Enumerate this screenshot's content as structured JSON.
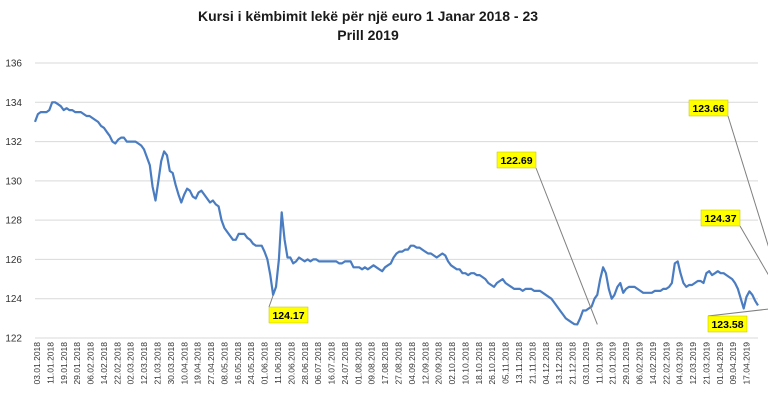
{
  "chart_data": {
    "type": "line",
    "title_line1": "Kursi i këmbimit lekë për një euro 1 Janar 2018 - 23",
    "title_line2": "Prill 2019",
    "ylim": [
      122,
      136
    ],
    "yticks": [
      "122",
      "124",
      "126",
      "128",
      "130",
      "132",
      "134",
      "136"
    ],
    "grid": true,
    "line_color": "#4a7cc2",
    "callout_color": "#ffff00",
    "x_labels": [
      "03.01.2018",
      "11.01.2018",
      "19.01.2018",
      "29.01.2018",
      "06.02.2018",
      "14.02.2018",
      "22.02.2018",
      "02.03.2018",
      "12.03.2018",
      "21.03.2018",
      "30.03.2018",
      "10.04.2018",
      "19.04.2018",
      "27.04.2018",
      "08.05.2018",
      "16.05.2018",
      "24.05.2018",
      "01.06.2018",
      "11.06.2018",
      "20.06.2018",
      "28.06.2018",
      "06.07.2018",
      "16.07.2018",
      "24.07.2018",
      "01.08.2018",
      "09.08.2018",
      "17.08.2018",
      "27.08.2018",
      "04.09.2018",
      "12.09.2018",
      "20.09.2018",
      "02.10.2018",
      "10.10.2018",
      "18.10.2018",
      "26.10.2018",
      "05.11.2018",
      "13.11.2018",
      "21.11.2018",
      "04.12.2018",
      "13.12.2018",
      "21.12.2018",
      "03.01.2019",
      "11.01.2019",
      "21.01.2019",
      "29.01.2019",
      "06.02.2019",
      "14.02.2019",
      "22.02.2019",
      "04.03.2019",
      "12.03.2019",
      "21.03.2019",
      "01.04.2019",
      "09.04.2019",
      "17.04.2019"
    ],
    "series": [
      {
        "values": [
          133.0,
          133.4,
          133.5,
          133.5,
          133.5,
          133.6,
          134.0,
          134.0,
          133.9,
          133.8,
          133.6,
          133.7,
          133.6,
          133.6,
          133.5,
          133.5,
          133.5,
          133.4,
          133.3,
          133.3,
          133.2,
          133.1,
          133.0,
          132.8,
          132.7,
          132.5,
          132.3,
          132.0,
          131.9,
          132.1,
          132.2,
          132.2,
          132.0,
          132.0,
          132.0,
          132.0,
          131.9,
          131.8,
          131.6,
          131.2,
          130.8,
          129.7,
          129.0,
          130.0,
          131.0,
          131.5,
          131.3,
          130.5,
          130.4,
          129.8,
          129.3,
          128.9,
          129.3,
          129.6,
          129.5,
          129.2,
          129.1,
          129.4,
          129.5,
          129.3,
          129.1,
          128.9,
          129.0,
          128.8,
          128.7,
          128.0,
          127.6,
          127.4,
          127.2,
          127.0,
          127.0,
          127.3,
          127.3,
          127.3,
          127.1,
          127.0,
          126.8,
          126.7,
          126.7,
          126.7,
          126.4,
          126.0,
          125.2,
          124.2,
          124.6,
          126.0,
          128.4,
          127.0,
          126.1,
          126.1,
          125.8,
          125.9,
          126.1,
          126.0,
          125.9,
          126.0,
          125.9,
          126.0,
          126.0,
          125.9,
          125.9,
          125.9,
          125.9,
          125.9,
          125.9,
          125.9,
          125.8,
          125.8,
          125.9,
          125.9,
          125.9,
          125.6,
          125.6,
          125.6,
          125.5,
          125.6,
          125.5,
          125.6,
          125.7,
          125.6,
          125.5,
          125.4,
          125.6,
          125.7,
          125.8,
          126.1,
          126.3,
          126.4,
          126.4,
          126.5,
          126.5,
          126.7,
          126.7,
          126.6,
          126.6,
          126.5,
          126.4,
          126.3,
          126.3,
          126.2,
          126.1,
          126.2,
          126.3,
          126.2,
          125.9,
          125.7,
          125.6,
          125.5,
          125.5,
          125.3,
          125.3,
          125.2,
          125.3,
          125.3,
          125.2,
          125.2,
          125.1,
          125.0,
          124.8,
          124.7,
          124.6,
          124.8,
          124.9,
          125.0,
          124.8,
          124.7,
          124.6,
          124.5,
          124.5,
          124.5,
          124.4,
          124.5,
          124.5,
          124.5,
          124.4,
          124.4,
          124.4,
          124.3,
          124.2,
          124.1,
          124.0,
          123.8,
          123.6,
          123.4,
          123.2,
          123.0,
          122.9,
          122.8,
          122.7,
          122.69,
          123.0,
          123.4,
          123.4,
          123.5,
          123.6,
          124.0,
          124.2,
          125.0,
          125.6,
          125.3,
          124.5,
          124.0,
          124.2,
          124.6,
          124.8,
          124.3,
          124.5,
          124.6,
          124.6,
          124.6,
          124.5,
          124.4,
          124.3,
          124.3,
          124.3,
          124.3,
          124.4,
          124.4,
          124.4,
          124.5,
          124.5,
          124.6,
          124.8,
          125.8,
          125.9,
          125.3,
          124.8,
          124.6,
          124.7,
          124.7,
          124.8,
          124.9,
          124.9,
          124.8,
          125.3,
          125.4,
          125.2,
          125.3,
          125.4,
          125.3,
          125.3,
          125.2,
          125.1,
          125.0,
          124.8,
          124.5,
          124.0,
          123.5,
          124.1,
          124.37,
          124.2,
          123.9,
          123.66
        ]
      }
    ],
    "callouts": [
      {
        "label": "124.17",
        "value": 124.17,
        "at_index": 83
      },
      {
        "label": "122.69",
        "value": 122.69,
        "at_index": 196
      },
      {
        "label": "123.66",
        "value": 123.66,
        "at_index": 262
      },
      {
        "label": "124.37",
        "value": 124.37,
        "at_index": 259
      },
      {
        "label": "123.58",
        "value": 123.58,
        "at_index": 262
      }
    ]
  }
}
